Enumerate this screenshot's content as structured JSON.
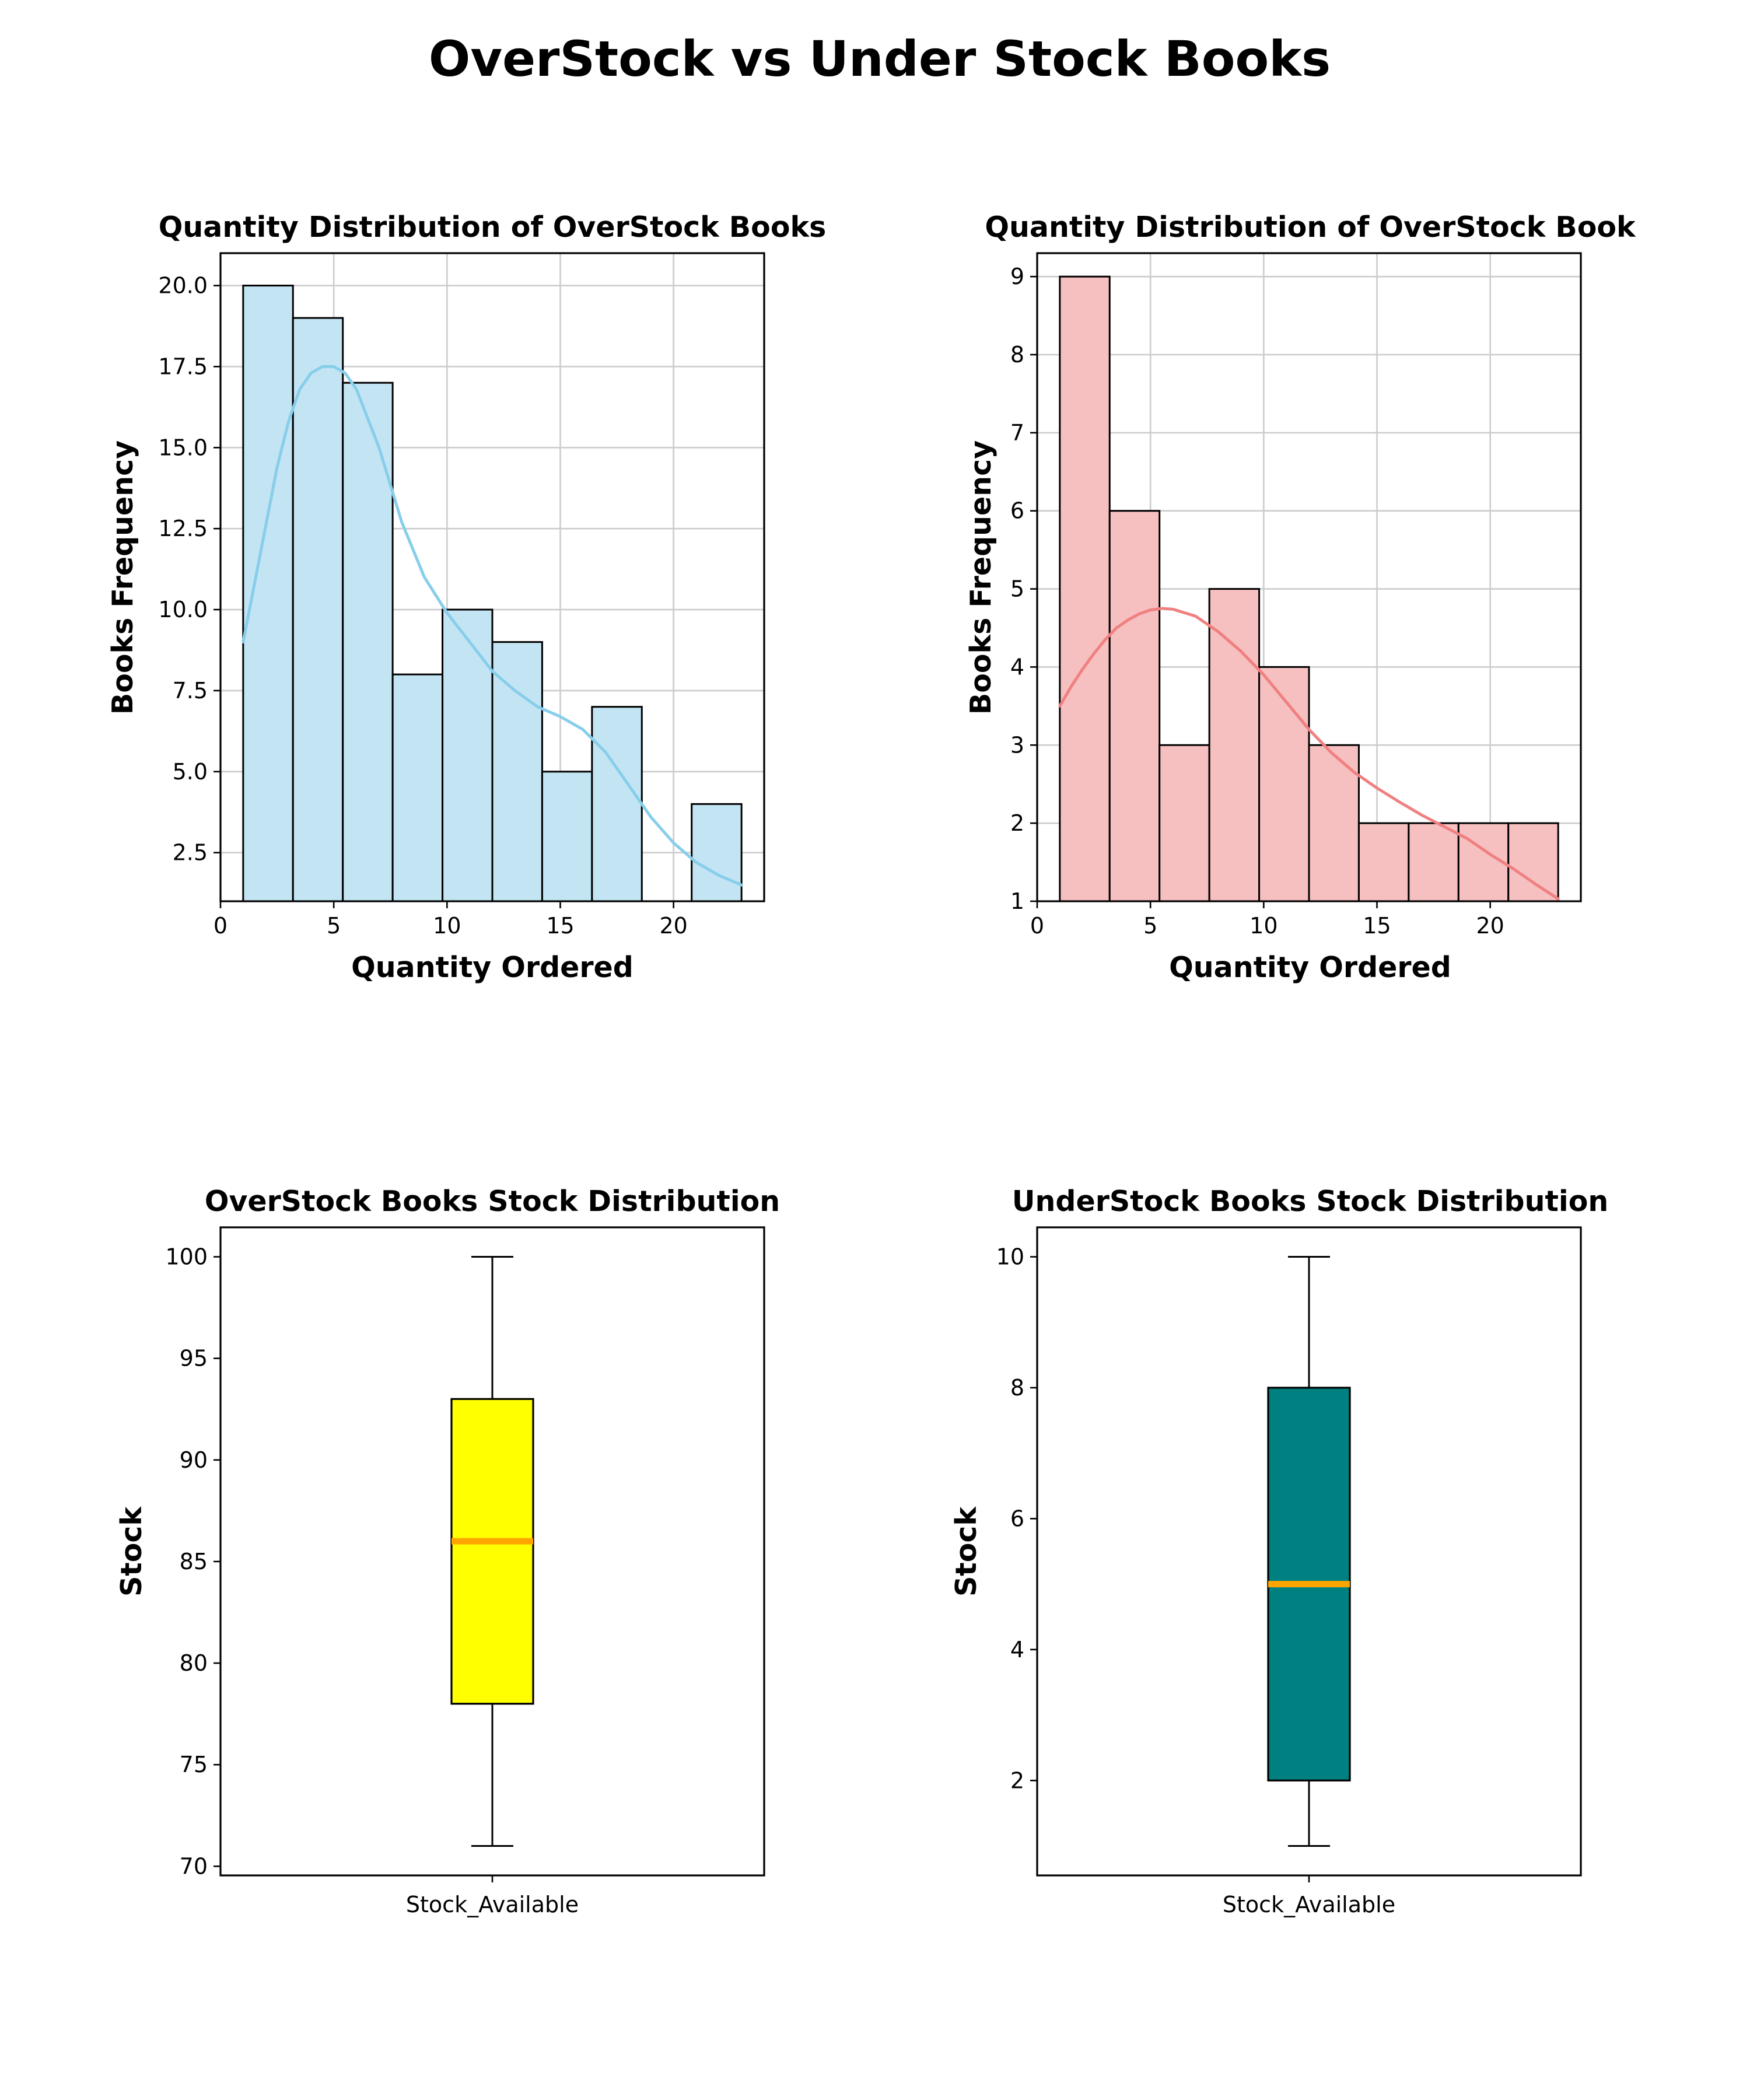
{
  "figure_title": "OverStock vs Under Stock Books",
  "chart_data": [
    {
      "type": "histogram",
      "title": "Quantity Distribution of OverStock Books",
      "xlabel": "Quantity Ordered",
      "ylabel": "Books Frequency",
      "bin_edges": [
        1.0,
        3.2,
        5.4,
        7.6,
        9.8,
        12.0,
        14.2,
        16.4,
        18.6,
        20.8,
        23.0
      ],
      "values": [
        20,
        19,
        17,
        8,
        10,
        9,
        5,
        7,
        0,
        4
      ],
      "kde": {
        "x": [
          1,
          1.5,
          2,
          2.5,
          3,
          3.5,
          4,
          4.5,
          5,
          5.5,
          6,
          7,
          8,
          9,
          10,
          11,
          12,
          13,
          14,
          15,
          16,
          17,
          18,
          19,
          20,
          21,
          22,
          23
        ],
        "y": [
          9.0,
          10.8,
          12.6,
          14.4,
          15.8,
          16.8,
          17.3,
          17.5,
          17.5,
          17.3,
          16.8,
          15.0,
          12.7,
          11.0,
          9.9,
          9.0,
          8.1,
          7.5,
          7.0,
          6.7,
          6.3,
          5.6,
          4.6,
          3.6,
          2.8,
          2.2,
          1.8,
          1.5
        ]
      },
      "xlim": [
        0,
        24
      ],
      "ylim": [
        1.0,
        21.0
      ],
      "xticks": [
        0,
        5,
        10,
        15,
        20
      ],
      "yticks": [
        2.5,
        5.0,
        7.5,
        10.0,
        12.5,
        15.0,
        17.5,
        20.0
      ],
      "ytick_labels": [
        "2.5",
        "5.0",
        "7.5",
        "10.0",
        "12.5",
        "15.0",
        "17.5",
        "20.0"
      ],
      "grid": true,
      "bar_color": "#c3e4f3",
      "line_color": "#87ceeb"
    },
    {
      "type": "histogram",
      "title": "Quantity Distribution of OverStock Book",
      "xlabel": "Quantity Ordered",
      "ylabel": "Books Frequency",
      "bin_edges": [
        1.0,
        3.2,
        5.4,
        7.6,
        9.8,
        12.0,
        14.2,
        16.4,
        18.6,
        20.8,
        23.0
      ],
      "values": [
        9,
        6,
        3,
        5,
        4,
        3,
        2,
        2,
        2,
        2
      ],
      "kde": {
        "x": [
          1,
          1.5,
          2,
          2.5,
          3,
          3.5,
          4,
          4.5,
          5,
          5.5,
          6,
          7,
          8,
          9,
          10,
          11,
          12,
          13,
          14,
          15,
          16,
          17,
          18,
          19,
          20,
          21,
          22,
          23
        ],
        "y": [
          3.5,
          3.75,
          3.97,
          4.17,
          4.35,
          4.5,
          4.6,
          4.68,
          4.73,
          4.75,
          4.74,
          4.65,
          4.45,
          4.2,
          3.9,
          3.55,
          3.2,
          2.9,
          2.65,
          2.45,
          2.27,
          2.1,
          1.95,
          1.8,
          1.6,
          1.42,
          1.22,
          1.03
        ]
      },
      "xlim": [
        0,
        24
      ],
      "ylim": [
        1,
        9.3
      ],
      "xticks": [
        0,
        5,
        10,
        15,
        20
      ],
      "yticks": [
        1,
        2,
        3,
        4,
        5,
        6,
        7,
        8,
        9
      ],
      "ytick_labels": [
        "1",
        "2",
        "3",
        "4",
        "5",
        "6",
        "7",
        "8",
        "9"
      ],
      "grid": true,
      "bar_color": "#f6bfc0",
      "line_color": "#f08080"
    },
    {
      "type": "box",
      "title": "OverStock Books Stock Distribution",
      "ylabel": "Stock",
      "category": "Stock_Available",
      "min": 71,
      "q1": 78,
      "median": 86,
      "q3": 93,
      "max": 100,
      "ylim": [
        69.55,
        101.45
      ],
      "yticks": [
        70,
        75,
        80,
        85,
        90,
        95,
        100
      ],
      "ytick_labels": [
        "70",
        "75",
        "80",
        "85",
        "90",
        "95",
        "100"
      ],
      "box_color": "#ffff00",
      "median_color": "#ffa500"
    },
    {
      "type": "box",
      "title": "UnderStock Books Stock Distribution",
      "ylabel": "Stock",
      "category": "Stock_Available",
      "min": 1,
      "q1": 2,
      "median": 5,
      "q3": 8,
      "max": 10,
      "ylim": [
        0.55,
        10.45
      ],
      "yticks": [
        2,
        4,
        6,
        8,
        10
      ],
      "ytick_labels": [
        "2",
        "4",
        "6",
        "8",
        "10"
      ],
      "box_color": "#008080",
      "median_color": "#ffa500"
    }
  ]
}
